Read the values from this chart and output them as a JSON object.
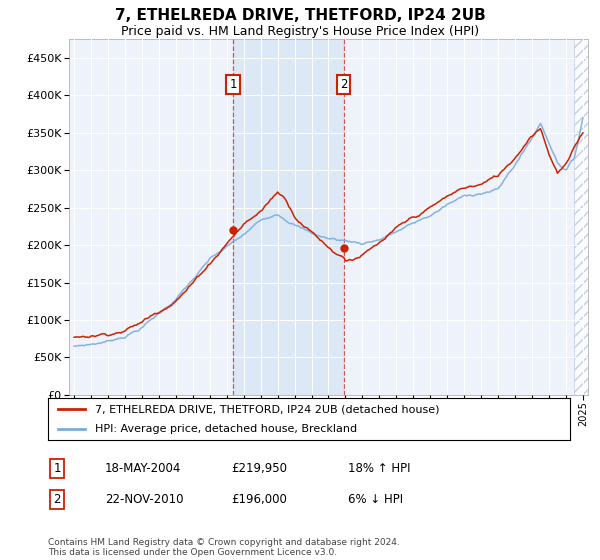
{
  "title": "7, ETHELREDA DRIVE, THETFORD, IP24 2UB",
  "subtitle": "Price paid vs. HM Land Registry's House Price Index (HPI)",
  "red_label": "7, ETHELREDA DRIVE, THETFORD, IP24 2UB (detached house)",
  "blue_label": "HPI: Average price, detached house, Breckland",
  "annotation1": {
    "num": "1",
    "date": "18-MAY-2004",
    "price": "£219,950",
    "hpi": "18% ↑ HPI",
    "x_year": 2004.38
  },
  "annotation2": {
    "num": "2",
    "date": "22-NOV-2010",
    "price": "£196,000",
    "hpi": "6% ↓ HPI",
    "x_year": 2010.9
  },
  "footer": "Contains HM Land Registry data © Crown copyright and database right 2024.\nThis data is licensed under the Open Government Licence v3.0.",
  "ylim": [
    0,
    475000
  ],
  "yticks": [
    0,
    50000,
    100000,
    150000,
    200000,
    250000,
    300000,
    350000,
    400000,
    450000
  ],
  "xlim_start": 1994.7,
  "xlim_end": 2025.3,
  "hatch_region_start": 2024.5,
  "sale1_x": 2004.38,
  "sale1_y": 219950,
  "sale2_x": 2010.9,
  "sale2_y": 196000,
  "red_color": "#cc2200",
  "blue_color": "#7aacdc",
  "bg_color": "#edf2fb",
  "shade_color": "#dce8f5",
  "hatch_color": "#c8d4e8"
}
